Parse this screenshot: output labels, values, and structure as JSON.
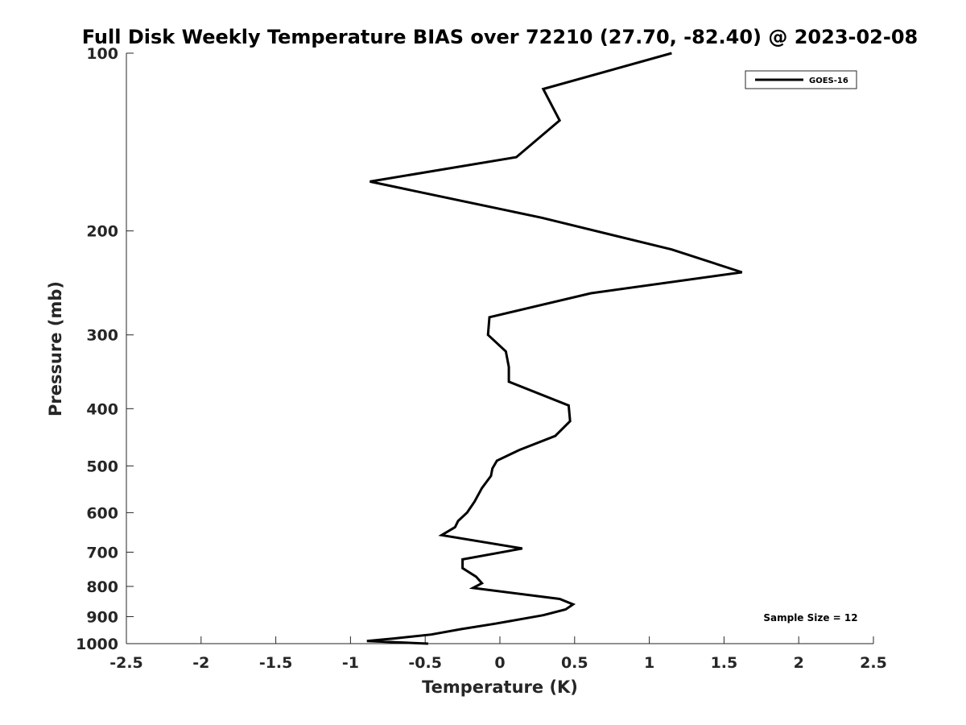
{
  "chart_data": {
    "type": "line",
    "title": "Full Disk Weekly Temperature BIAS over 72210 (27.70, -82.40) @ 2023-02-08",
    "xlabel": "Temperature (K)",
    "ylabel": "Pressure (mb)",
    "xlim": [
      -2.5,
      2.5
    ],
    "ylim": [
      1000,
      100
    ],
    "yscale": "log",
    "y_reversed": true,
    "xticks": [
      -2.5,
      -2,
      -1.5,
      -1,
      -0.5,
      0,
      0.5,
      1,
      1.5,
      2,
      2.5
    ],
    "xtick_labels": [
      "-2.5",
      "-2",
      "-1.5",
      "-1",
      "-0.5",
      "0",
      "0.5",
      "1",
      "1.5",
      "2",
      "2.5"
    ],
    "yticks": [
      100,
      200,
      300,
      400,
      500,
      600,
      700,
      800,
      900,
      1000
    ],
    "ytick_labels": [
      "100",
      "200",
      "300",
      "400",
      "500",
      "600",
      "700",
      "800",
      "900",
      "1000"
    ],
    "grid": false,
    "legend_position": "top-right",
    "series": [
      {
        "name": "GOES-16",
        "color": "#000000",
        "x": [
          1.15,
          0.29,
          0.4,
          0.11,
          -0.87,
          0.28,
          1.15,
          1.62,
          0.61,
          -0.07,
          -0.08,
          0.04,
          0.06,
          0.06,
          0.46,
          0.47,
          0.37,
          0.13,
          -0.02,
          -0.05,
          -0.06,
          -0.12,
          -0.17,
          -0.22,
          -0.28,
          -0.3,
          -0.39,
          0.15,
          -0.25,
          -0.25,
          -0.16,
          -0.12,
          -0.18,
          0.4,
          0.49,
          0.44,
          0.29,
          -0.03,
          -0.26,
          -0.46,
          -0.71,
          -0.89,
          -0.48
        ],
        "y": [
          100,
          115,
          130,
          150,
          165,
          190,
          215,
          235,
          255,
          280,
          300,
          320,
          340,
          360,
          395,
          420,
          445,
          470,
          490,
          505,
          520,
          545,
          575,
          600,
          620,
          635,
          655,
          690,
          720,
          745,
          770,
          790,
          805,
          840,
          858,
          875,
          895,
          925,
          945,
          965,
          980,
          990,
          1000
        ]
      }
    ],
    "annotation": "Sample Size = 12"
  }
}
